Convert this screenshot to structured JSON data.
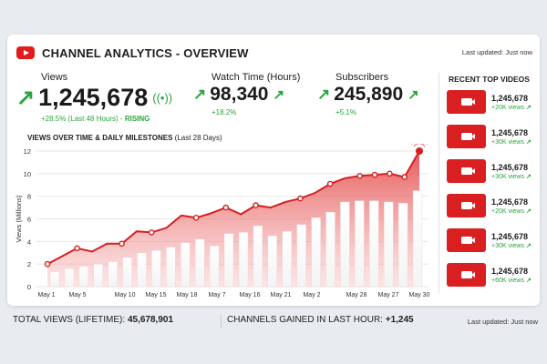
{
  "header": {
    "title": "CHANNEL ANALYTICS - OVERVIEW",
    "last_updated": "Last updated: Just now"
  },
  "stats": {
    "views": {
      "label": "Views",
      "value": "1,245,678",
      "change": "+28.5% (Last 48 Hours) -",
      "status": "RISING"
    },
    "watch_time": {
      "label": "Watch Time (Hours)",
      "value": "98,340",
      "change": "+18.2%"
    },
    "subscribers": {
      "label": "Subscribers",
      "value": "245,890",
      "change": "+5.1%"
    }
  },
  "chart_title": {
    "main": "VIEWS OVER TIME & DAILY MILESTONES",
    "sub": "(Last 28 Days)"
  },
  "chart_data": {
    "type": "bar",
    "title": "VIEWS OVER TIME & DAILY MILESTONES (Last 28 Days)",
    "xlabel": "",
    "ylabel": "Views (Millions)",
    "ylim": [
      0,
      12
    ],
    "yticks": [
      "0",
      "2",
      "4",
      "6",
      "8",
      "10",
      "12"
    ],
    "tick_labels": [
      "May 1",
      "May 5",
      "May 10",
      "May 15",
      "May 18",
      "May 7",
      "May 16",
      "May 21",
      "May 2",
      "May 28",
      "May 27",
      "May 30"
    ],
    "grid": true,
    "bars": [
      1.3,
      1.6,
      1.8,
      2.0,
      2.2,
      2.6,
      3.0,
      3.2,
      3.5,
      3.9,
      4.2,
      3.6,
      4.7,
      4.8,
      5.4,
      4.5,
      4.9,
      5.5,
      6.1,
      6.6,
      7.5,
      7.6,
      7.6,
      7.5,
      7.4,
      8.5
    ],
    "line": [
      2.0,
      2.7,
      3.4,
      3.1,
      3.8,
      3.8,
      4.9,
      4.8,
      5.2,
      6.3,
      6.1,
      6.5,
      7.0,
      6.4,
      7.2,
      7.0,
      7.5,
      7.8,
      8.3,
      9.1,
      9.6,
      9.8,
      9.9,
      10.0,
      9.7,
      12.0
    ]
  },
  "recent_videos": {
    "title": "RECENT TOP VIDEOS",
    "items": [
      {
        "views": "1,245,678",
        "change": "+20K views",
        "arrow": "↗"
      },
      {
        "views": "1,245,678",
        "change": "+30K views",
        "arrow": "↗"
      },
      {
        "views": "1,245,678",
        "change": "+30K views",
        "arrow": "↗"
      },
      {
        "views": "1,245,678",
        "change": "+20K views",
        "arrow": "↗"
      },
      {
        "views": "1,245,678",
        "change": "+30K views",
        "arrow": "↗"
      },
      {
        "views": "1,245,678",
        "change": "+60K views",
        "arrow": "↗"
      }
    ]
  },
  "footer": {
    "total_label": "TOTAL VIEWS (LIFETIME):",
    "total_value": "45,678,901",
    "gained_label": "CHANNELS GAINED IN LAST HOUR:",
    "gained_value": "+1,245",
    "last_updated": "Last updated: Just now"
  },
  "icons": {
    "up_arrow": "↗",
    "broadcast": "((•))"
  },
  "colors": {
    "accent": "#e31b1b",
    "positive": "#2aa53d"
  }
}
